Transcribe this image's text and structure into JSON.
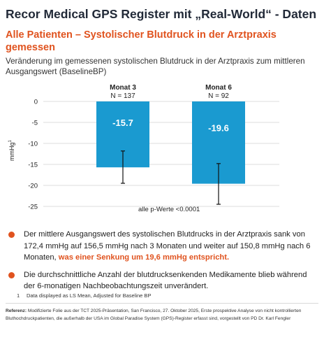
{
  "title": "Recor Medical GPS Register mit „Real-World“ - Daten",
  "subtitle": "Alle Patienten – Systolischer Blutdruck in der Arztpraxis gemessen",
  "description": "Veränderung im gemessenen systolischen Blutdruck in der Arztpraxis zum mittleren Ausgangswert (BaselineBP)",
  "chart_data": {
    "type": "bar",
    "categories": [
      "Monat 3",
      "Monat 6"
    ],
    "n_labels": [
      "N = 137",
      "N = 92"
    ],
    "values": [
      -15.7,
      -19.6
    ],
    "value_labels": [
      "-15.7",
      "-19.6"
    ],
    "error_low": [
      -19.5,
      -24.5
    ],
    "error_high": [
      -11.8,
      -14.8
    ],
    "ylabel": "mmHg",
    "ylabel_sup": "1",
    "ylim": [
      -25,
      0
    ],
    "yticks": [
      0,
      -5,
      -10,
      -15,
      -20,
      -25
    ],
    "ytick_labels": [
      "0",
      "-5",
      "-10",
      "-15",
      "-20",
      "-25"
    ],
    "grid": true,
    "bar_color": "#1a9ad0",
    "annotation": "alle p-Werte <0.0001"
  },
  "bullets": [
    {
      "text": "Der mittlere Ausgangswert des systolischen Blutdrucks in der Arztpraxis sank von 172,4 mmHg auf  156,5 mmHg nach 3 Monaten und weiter auf 150,8 mmHg nach 6 Monaten, ",
      "highlight": "was einer Senkung um 19,6 mmHg entspricht."
    },
    {
      "text": "Die durchschnittliche Anzahl der blutdrucksenkenden Medikamente blieb während der 6-monatigen Nachbeobachtungszeit unverändert.",
      "highlight": ""
    }
  ],
  "footnote": {
    "number": "1",
    "text": "Data displayed as LS Mean, Adjusted for Baseline BP"
  },
  "reference": {
    "label": "Referenz:",
    "text": " Modifizierte Folie aus der TCT 2025-Präsentation, San Francisco, 27. Oktober 2025, Erste prospektive Analyse von nicht kontrollierten Bluthochdruckpatienten, die außerhalb der USA im Global Paradise System (GPS)-Register erfasst sind, vorgestellt von PD Dr. Karl Fengler"
  },
  "colors": {
    "accent": "#e0531f",
    "title": "#222a38",
    "bar": "#1a9ad0"
  }
}
